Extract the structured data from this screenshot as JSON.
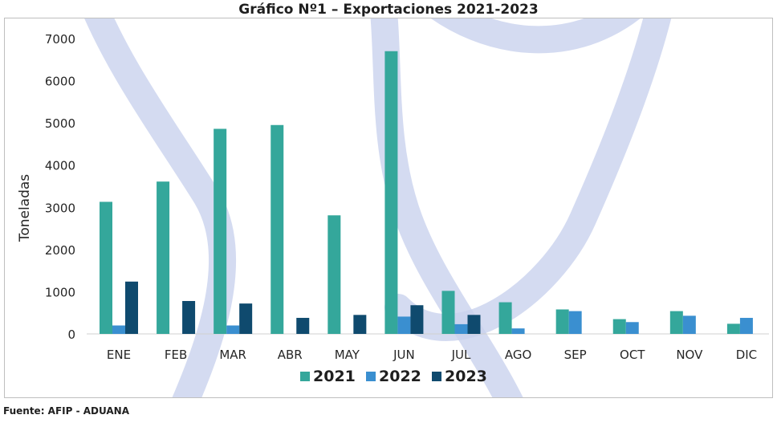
{
  "colors": {
    "s2021": "#34a79b",
    "s2022": "#3a8fd0",
    "s2023": "#0f4a6e",
    "watermark": "#c9d2ee"
  },
  "chart_data": {
    "type": "bar",
    "title": "Gráfico Nº1 – Exportaciones 2021-2023",
    "ylabel": "Toneladas",
    "xlabel": "",
    "ylim": [
      0,
      7000
    ],
    "yticks": [
      0,
      1000,
      2000,
      3000,
      4000,
      5000,
      6000,
      7000
    ],
    "grid": false,
    "legend": "bottom",
    "categories": [
      "ENE",
      "FEB",
      "MAR",
      "ABR",
      "MAY",
      "JUN",
      "JUL",
      "AGO",
      "SEP",
      "OCT",
      "NOV",
      "DIC"
    ],
    "series": [
      {
        "name": "2021",
        "color": "#34a79b",
        "values": [
          3130,
          3610,
          4860,
          4950,
          2810,
          6700,
          1020,
          750,
          580,
          350,
          540,
          240
        ]
      },
      {
        "name": "2022",
        "color": "#3a8fd0",
        "values": [
          200,
          0,
          200,
          0,
          0,
          410,
          230,
          130,
          540,
          280,
          430,
          380
        ]
      },
      {
        "name": "2023",
        "color": "#0f4a6e",
        "values": [
          1240,
          780,
          720,
          380,
          450,
          680,
          450,
          0,
          0,
          0,
          0,
          0
        ]
      }
    ]
  },
  "source": "Fuente: AFIP - ADUANA"
}
